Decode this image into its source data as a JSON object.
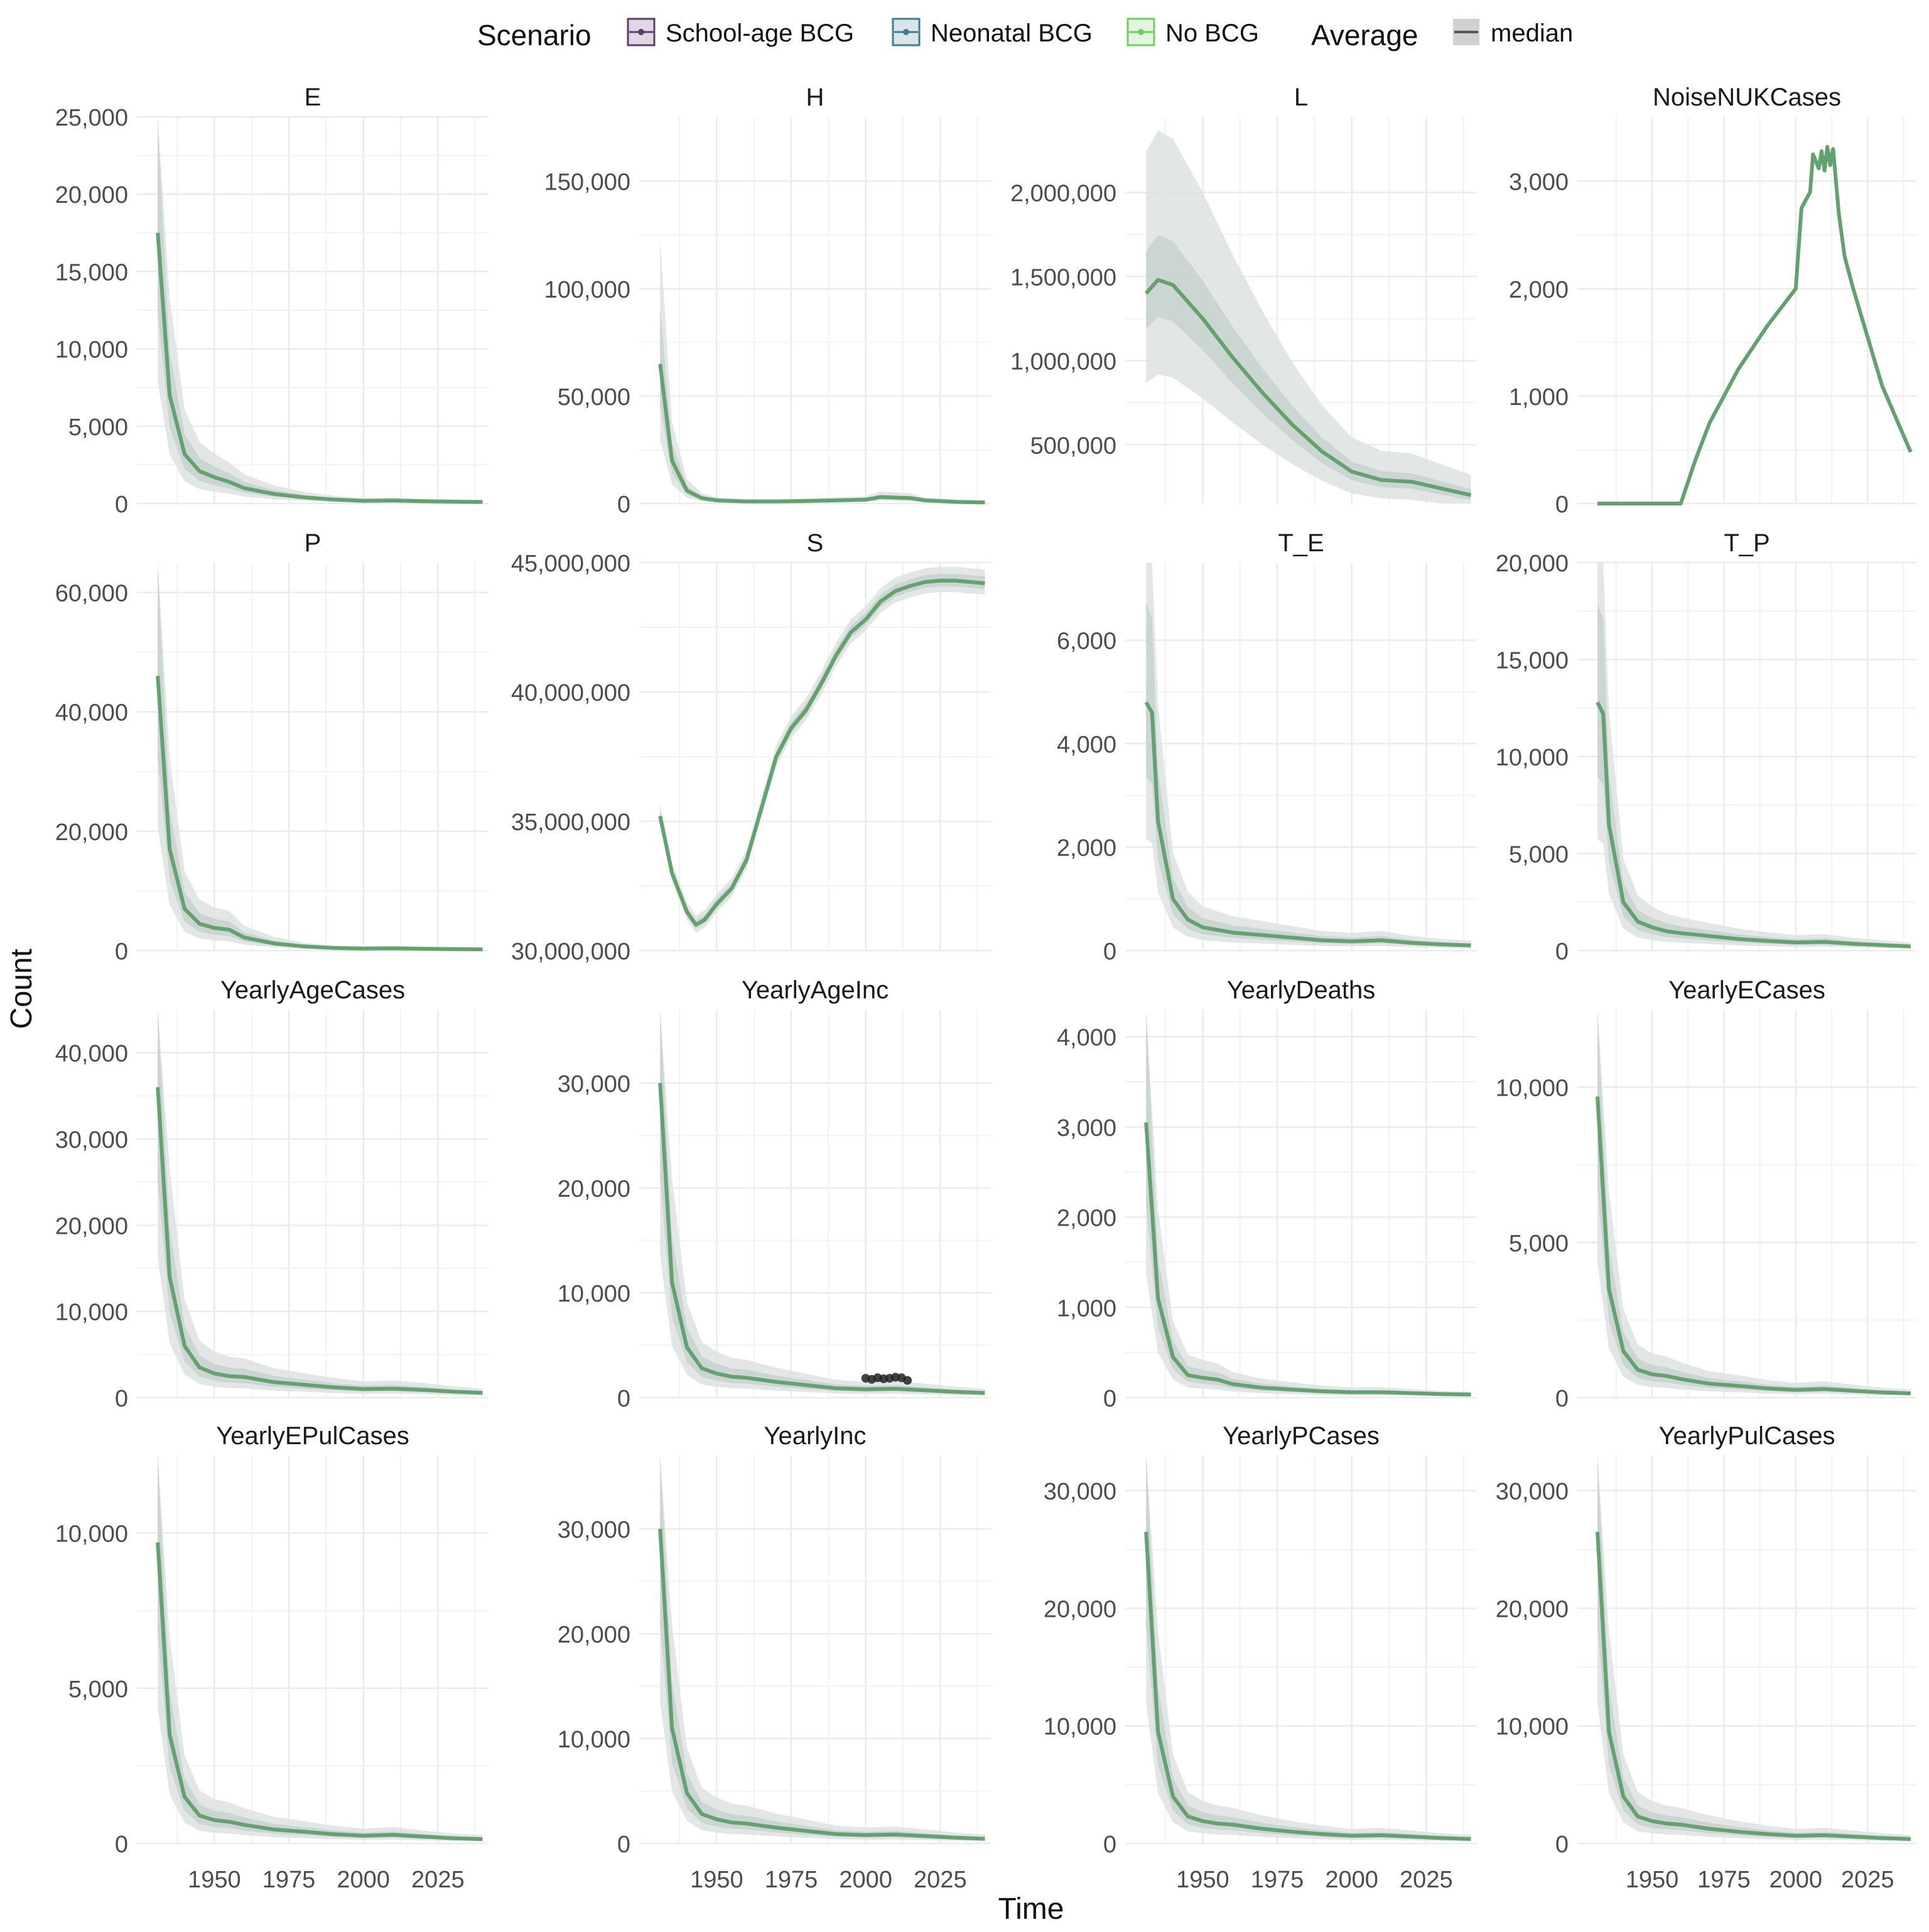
{
  "legend": {
    "scenario_title": "Scenario",
    "scenario_items": [
      {
        "label": "School-age BCG",
        "color": "#5e3c6e"
      },
      {
        "label": "Neonatal BCG",
        "color": "#3f7f8f"
      },
      {
        "label": "No BCG",
        "color": "#6fcf5a"
      }
    ],
    "average_title": "Average",
    "average_items": [
      {
        "label": "median",
        "color": "#555555"
      }
    ],
    "placement": "top"
  },
  "axes": {
    "xlabel": "Time",
    "ylabel": "Count"
  },
  "colors": {
    "line": "#63a26f",
    "band_outer": "#dde3e0",
    "band_inner": "#c9d3ce",
    "grid": "#ebebeb",
    "points": "#222222"
  },
  "chart_data": [
    {
      "type": "line",
      "title": "E",
      "ylim": [
        0,
        25000
      ],
      "yticks": [
        0,
        5000,
        10000,
        15000,
        20000,
        25000
      ],
      "ytick_labels": [
        "0",
        "5,000",
        "10,000",
        "15,000",
        "20,000",
        "25,000"
      ],
      "x": [
        1931,
        1935,
        1940,
        1945,
        1950,
        1955,
        1960,
        1970,
        1980,
        1990,
        2000,
        2010,
        2020,
        2030,
        2040
      ],
      "series": [
        {
          "values": [
            17500,
            7000,
            3200,
            2100,
            1700,
            1400,
            1000,
            620,
            400,
            260,
            180,
            200,
            150,
            120,
            100
          ]
        }
      ]
    },
    {
      "type": "line",
      "title": "H",
      "ylim": [
        0,
        180000
      ],
      "yticks": [
        0,
        50000,
        100000,
        150000
      ],
      "ytick_labels": [
        "0",
        "50,000",
        "100,000",
        "150,000"
      ],
      "x": [
        1931,
        1935,
        1940,
        1945,
        1950,
        1960,
        1970,
        1980,
        1990,
        2000,
        2005,
        2015,
        2020,
        2030,
        2040
      ],
      "series": [
        {
          "values": [
            65000,
            20000,
            6000,
            2500,
            1500,
            1000,
            1000,
            1200,
            1500,
            1800,
            3000,
            2500,
            1500,
            800,
            500
          ]
        }
      ]
    },
    {
      "type": "line",
      "title": "L",
      "ylim": [
        150000,
        2450000
      ],
      "yticks": [
        500000,
        1000000,
        1500000,
        2000000
      ],
      "ytick_labels": [
        "500,000",
        "1,000,000",
        "1,500,000",
        "2,000,000"
      ],
      "x": [
        1931,
        1935,
        1940,
        1950,
        1960,
        1970,
        1980,
        1990,
        2000,
        2010,
        2020,
        2030,
        2040
      ],
      "series": [
        {
          "values": [
            1400000,
            1480000,
            1450000,
            1250000,
            1020000,
            810000,
            620000,
            460000,
            340000,
            290000,
            280000,
            240000,
            200000
          ]
        }
      ]
    },
    {
      "type": "line",
      "title": "NoiseNUKCases",
      "ylim": [
        0,
        3600
      ],
      "yticks": [
        0,
        1000,
        2000,
        3000
      ],
      "ytick_labels": [
        "0",
        "1,000",
        "2,000",
        "3,000"
      ],
      "x": [
        1931,
        1940,
        1950,
        1960,
        1965,
        1970,
        1980,
        1990,
        2000,
        2002,
        2005,
        2006,
        2008,
        2009,
        2010,
        2011,
        2012,
        2013,
        2015,
        2017,
        2020,
        2030,
        2040
      ],
      "series": [
        {
          "values": [
            0,
            0,
            0,
            0,
            400,
            750,
            1250,
            1650,
            2000,
            2750,
            2900,
            3250,
            3120,
            3280,
            3100,
            3320,
            3150,
            3300,
            2700,
            2300,
            2000,
            1100,
            480
          ]
        }
      ]
    },
    {
      "type": "line",
      "title": "P",
      "ylim": [
        0,
        65000
      ],
      "yticks": [
        0,
        20000,
        40000,
        60000
      ],
      "ytick_labels": [
        "0",
        "20,000",
        "40,000",
        "60,000"
      ],
      "x": [
        1931,
        1935,
        1940,
        1945,
        1950,
        1955,
        1960,
        1970,
        1980,
        1990,
        2000,
        2010,
        2020,
        2030,
        2040
      ],
      "series": [
        {
          "values": [
            46000,
            17000,
            7000,
            4500,
            3800,
            3500,
            2200,
            1200,
            700,
            450,
            350,
            380,
            300,
            250,
            200
          ]
        }
      ]
    },
    {
      "type": "line",
      "title": "S",
      "ylim": [
        30000000,
        45000000
      ],
      "yticks": [
        30000000,
        35000000,
        40000000,
        45000000
      ],
      "ytick_labels": [
        "30,000,000",
        "35,000,000",
        "40,000,000",
        "45,000,000"
      ],
      "x": [
        1931,
        1935,
        1940,
        1943,
        1946,
        1950,
        1955,
        1960,
        1965,
        1970,
        1975,
        1980,
        1985,
        1990,
        1995,
        2000,
        2005,
        2010,
        2015,
        2020,
        2025,
        2030,
        2035,
        2040
      ],
      "series": [
        {
          "values": [
            35200000,
            33000000,
            31500000,
            31000000,
            31200000,
            31800000,
            32400000,
            33500000,
            35500000,
            37500000,
            38600000,
            39300000,
            40300000,
            41400000,
            42300000,
            42800000,
            43500000,
            43900000,
            44100000,
            44250000,
            44300000,
            44300000,
            44250000,
            44200000
          ]
        }
      ]
    },
    {
      "type": "line",
      "title": "T_E",
      "ylim": [
        0,
        7500
      ],
      "yticks": [
        0,
        2000,
        4000,
        6000
      ],
      "ytick_labels": [
        "0",
        "2,000",
        "4,000",
        "6,000"
      ],
      "x": [
        1931,
        1933,
        1935,
        1940,
        1945,
        1950,
        1955,
        1960,
        1970,
        1980,
        1990,
        2000,
        2010,
        2020,
        2030,
        2040
      ],
      "series": [
        {
          "values": [
            4800,
            4600,
            2500,
            1000,
            600,
            450,
            400,
            350,
            300,
            250,
            200,
            180,
            200,
            150,
            120,
            100
          ]
        }
      ]
    },
    {
      "type": "line",
      "title": "T_P",
      "ylim": [
        0,
        20000
      ],
      "yticks": [
        0,
        5000,
        10000,
        15000,
        20000
      ],
      "ytick_labels": [
        "0",
        "5,000",
        "10,000",
        "15,000",
        "20,000"
      ],
      "x": [
        1931,
        1933,
        1935,
        1940,
        1945,
        1950,
        1955,
        1960,
        1970,
        1980,
        1990,
        2000,
        2010,
        2020,
        2030,
        2040
      ],
      "series": [
        {
          "values": [
            12800,
            12200,
            6500,
            2500,
            1500,
            1200,
            1000,
            900,
            750,
            600,
            500,
            420,
            450,
            350,
            280,
            220
          ]
        }
      ]
    },
    {
      "type": "line",
      "title": "YearlyAgeCases",
      "ylim": [
        0,
        45000
      ],
      "yticks": [
        0,
        10000,
        20000,
        30000,
        40000
      ],
      "ytick_labels": [
        "0",
        "10,000",
        "20,000",
        "30,000",
        "40,000"
      ],
      "x": [
        1931,
        1935,
        1940,
        1945,
        1950,
        1955,
        1960,
        1970,
        1980,
        1990,
        2000,
        2010,
        2020,
        2030,
        2040
      ],
      "series": [
        {
          "values": [
            36000,
            14000,
            6000,
            3500,
            2800,
            2500,
            2400,
            1800,
            1500,
            1200,
            1000,
            1050,
            900,
            700,
            550
          ]
        }
      ]
    },
    {
      "type": "line",
      "title": "YearlyAgeInc",
      "ylim": [
        0,
        37000
      ],
      "yticks": [
        0,
        10000,
        20000,
        30000
      ],
      "ytick_labels": [
        "0",
        "10,000",
        "20,000",
        "30,000"
      ],
      "x": [
        1931,
        1935,
        1940,
        1945,
        1950,
        1955,
        1960,
        1970,
        1980,
        1990,
        2000,
        2010,
        2020,
        2030,
        2040
      ],
      "series": [
        {
          "values": [
            30000,
            11000,
            4800,
            2800,
            2300,
            2000,
            1900,
            1500,
            1200,
            900,
            800,
            850,
            700,
            550,
            450
          ]
        }
      ],
      "points": {
        "x": [
          2000,
          2002,
          2004,
          2006,
          2008,
          2010,
          2012,
          2014
        ],
        "y": [
          1850,
          1750,
          1900,
          1800,
          1850,
          1950,
          1900,
          1650
        ]
      }
    },
    {
      "type": "line",
      "title": "YearlyDeaths",
      "ylim": [
        0,
        4300
      ],
      "yticks": [
        0,
        1000,
        2000,
        3000,
        4000
      ],
      "ytick_labels": [
        "0",
        "1,000",
        "2,000",
        "3,000",
        "4,000"
      ],
      "x": [
        1931,
        1935,
        1940,
        1945,
        1950,
        1955,
        1960,
        1970,
        1980,
        1990,
        2000,
        2010,
        2020,
        2030,
        2040
      ],
      "series": [
        {
          "values": [
            3050,
            1100,
            450,
            250,
            220,
            200,
            150,
            110,
            90,
            70,
            60,
            60,
            50,
            40,
            35
          ]
        }
      ]
    },
    {
      "type": "line",
      "title": "YearlyECases",
      "ylim": [
        0,
        12500
      ],
      "yticks": [
        0,
        5000,
        10000
      ],
      "ytick_labels": [
        "0",
        "5,000",
        "10,000"
      ],
      "x": [
        1931,
        1935,
        1940,
        1945,
        1950,
        1955,
        1960,
        1970,
        1980,
        1990,
        2000,
        2010,
        2020,
        2030,
        2040
      ],
      "series": [
        {
          "values": [
            9700,
            3500,
            1500,
            900,
            750,
            700,
            600,
            450,
            380,
            300,
            250,
            280,
            220,
            170,
            140
          ]
        }
      ]
    },
    {
      "type": "line",
      "title": "YearlyEPulCases",
      "ylim": [
        0,
        12500
      ],
      "yticks": [
        0,
        5000,
        10000
      ],
      "ytick_labels": [
        "0",
        "5,000",
        "10,000"
      ],
      "x": [
        1931,
        1935,
        1940,
        1945,
        1950,
        1955,
        1960,
        1970,
        1980,
        1990,
        2000,
        2010,
        2020,
        2030,
        2040
      ],
      "series": [
        {
          "values": [
            9700,
            3500,
            1500,
            900,
            750,
            700,
            600,
            450,
            380,
            300,
            250,
            280,
            220,
            170,
            140
          ]
        }
      ]
    },
    {
      "type": "line",
      "title": "YearlyInc",
      "ylim": [
        0,
        37000
      ],
      "yticks": [
        0,
        10000,
        20000,
        30000
      ],
      "ytick_labels": [
        "0",
        "10,000",
        "20,000",
        "30,000"
      ],
      "x": [
        1931,
        1935,
        1940,
        1945,
        1950,
        1955,
        1960,
        1970,
        1980,
        1990,
        2000,
        2010,
        2020,
        2030,
        2040
      ],
      "series": [
        {
          "values": [
            30000,
            11000,
            4800,
            2800,
            2300,
            2000,
            1900,
            1500,
            1200,
            900,
            800,
            850,
            700,
            550,
            450
          ]
        }
      ]
    },
    {
      "type": "line",
      "title": "YearlyPCases",
      "ylim": [
        0,
        33000
      ],
      "yticks": [
        0,
        10000,
        20000,
        30000
      ],
      "ytick_labels": [
        "0",
        "10,000",
        "20,000",
        "30,000"
      ],
      "x": [
        1931,
        1935,
        1940,
        1945,
        1950,
        1955,
        1960,
        1970,
        1980,
        1990,
        2000,
        2010,
        2020,
        2030,
        2040
      ],
      "series": [
        {
          "values": [
            26500,
            9500,
            4000,
            2300,
            1900,
            1700,
            1600,
            1250,
            1000,
            800,
            650,
            700,
            580,
            460,
            380
          ]
        }
      ]
    },
    {
      "type": "line",
      "title": "YearlyPulCases",
      "ylim": [
        0,
        33000
      ],
      "yticks": [
        0,
        10000,
        20000,
        30000
      ],
      "ytick_labels": [
        "0",
        "10,000",
        "20,000",
        "30,000"
      ],
      "x": [
        1931,
        1935,
        1940,
        1945,
        1950,
        1955,
        1960,
        1970,
        1980,
        1990,
        2000,
        2010,
        2020,
        2030,
        2040
      ],
      "series": [
        {
          "values": [
            26500,
            9500,
            4000,
            2300,
            1900,
            1700,
            1600,
            1250,
            1000,
            800,
            650,
            700,
            580,
            460,
            380
          ]
        }
      ]
    }
  ],
  "x_axis": {
    "xlim": [
      1924,
      2042
    ],
    "xticks": [
      1950,
      1975,
      2000,
      2025
    ],
    "xtick_labels": [
      "1950",
      "1975",
      "2000",
      "2025"
    ]
  }
}
